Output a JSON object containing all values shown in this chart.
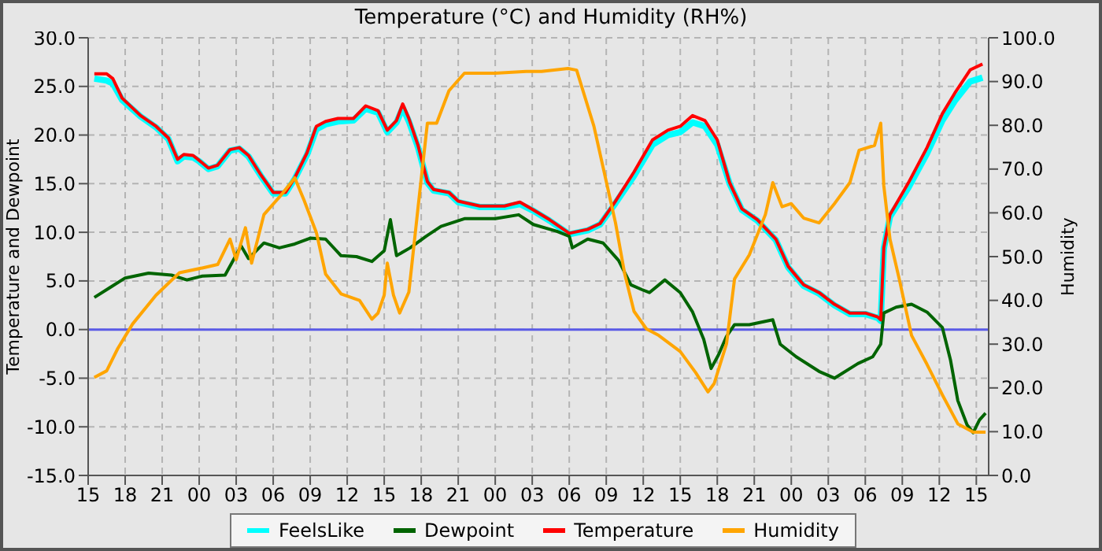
{
  "chart_data": {
    "type": "line",
    "title": "Temperature (°C) and Humidity (RH%)",
    "ylabel": "Temperature and Dewpoint",
    "y2label": "Humidity",
    "xlim": [
      "--01-01T15:00",
      "--01-04T16:00"
    ],
    "xticks": [
      {
        "value": "--01-01T15:00",
        "label": "15"
      },
      {
        "value": "--01-01T18:00",
        "label": "18"
      },
      {
        "value": "--01-01T21:00",
        "label": "21"
      },
      {
        "value": "--01-02T00:00",
        "label": "00"
      },
      {
        "value": "--01-02T03:00",
        "label": "03"
      },
      {
        "value": "--01-02T06:00",
        "label": "06"
      },
      {
        "value": "--01-02T09:00",
        "label": "09"
      },
      {
        "value": "--01-02T12:00",
        "label": "12"
      },
      {
        "value": "--01-02T15:00",
        "label": "15"
      },
      {
        "value": "--01-02T18:00",
        "label": "18"
      },
      {
        "value": "--01-02T21:00",
        "label": "21"
      },
      {
        "value": "--01-03T00:00",
        "label": "00"
      },
      {
        "value": "--01-03T03:00",
        "label": "03"
      },
      {
        "value": "--01-03T06:00",
        "label": "06"
      },
      {
        "value": "--01-03T09:00",
        "label": "09"
      },
      {
        "value": "--01-03T12:00",
        "label": "12"
      },
      {
        "value": "--01-03T15:00",
        "label": "15"
      },
      {
        "value": "--01-03T18:00",
        "label": "18"
      },
      {
        "value": "--01-03T21:00",
        "label": "21"
      },
      {
        "value": "--01-04T00:00",
        "label": "00"
      },
      {
        "value": "--01-04T03:00",
        "label": "03"
      },
      {
        "value": "--01-04T06:00",
        "label": "06"
      },
      {
        "value": "--01-04T09:00",
        "label": "09"
      },
      {
        "value": "--01-04T12:00",
        "label": "12"
      },
      {
        "value": "--01-04T15:00",
        "label": "15"
      }
    ],
    "ylim": [
      -15,
      30
    ],
    "yticks": [
      {
        "value": -15,
        "label": "-15.0"
      },
      {
        "value": -10,
        "label": "-10.0"
      },
      {
        "value": -5,
        "label": "-5.0"
      },
      {
        "value": 0,
        "label": "0.0"
      },
      {
        "value": 5,
        "label": "5.0"
      },
      {
        "value": 10,
        "label": "10.0"
      },
      {
        "value": 15,
        "label": "15.0"
      },
      {
        "value": 20,
        "label": "20.0"
      },
      {
        "value": 25,
        "label": "25.0"
      },
      {
        "value": 30,
        "label": "30.0"
      }
    ],
    "y2lim": [
      0,
      100
    ],
    "y2ticks": [
      {
        "value": 0,
        "label": "0.0"
      },
      {
        "value": 10,
        "label": "10.0"
      },
      {
        "value": 20,
        "label": "20.0"
      },
      {
        "value": 30,
        "label": "30.0"
      },
      {
        "value": 40,
        "label": "40.0"
      },
      {
        "value": 50,
        "label": "50.0"
      },
      {
        "value": 60,
        "label": "60.0"
      },
      {
        "value": 70,
        "label": "70.0"
      },
      {
        "value": 80,
        "label": "80.0"
      },
      {
        "value": 90,
        "label": "90.0"
      },
      {
        "value": 100,
        "label": "100.0"
      }
    ],
    "grid": true,
    "legend": "bottom",
    "marker": "none",
    "ref_lines": [
      {
        "axis": "y",
        "value": 0,
        "color": "#5a5ae6"
      }
    ],
    "series": [
      {
        "name": "FeelsLike",
        "color": "#00ffff",
        "x": [
          "--01-01T15:30",
          "--01-01T16:30",
          "--01-01T17:00",
          "--01-01T17:45",
          "--01-01T19:15",
          "--01-01T20:30",
          "--01-01T21:30",
          "--01-01T22:15",
          "--01-01T22:45",
          "--01-01T23:30",
          "--01-02T00:00",
          "--01-02T00:45",
          "--01-02T01:30",
          "--01-02T02:30",
          "--01-02T03:15",
          "--01-02T04:00",
          "--01-02T05:00",
          "--01-02T06:00",
          "--01-02T07:00",
          "--01-02T07:45",
          "--01-02T08:45",
          "--01-02T09:30",
          "--01-02T10:15",
          "--01-02T11:15",
          "--01-02T12:30",
          "--01-02T13:30",
          "--01-02T14:30",
          "--01-02T15:15",
          "--01-02T16:00",
          "--01-02T16:30",
          "--01-02T17:00",
          "--01-02T17:45",
          "--01-02T18:30",
          "--01-02T19:00",
          "--01-02T20:15",
          "--01-02T21:00",
          "--01-02T22:45",
          "--01-03T00:45",
          "--01-03T02:00",
          "--01-03T03:06",
          "--01-03T04:24",
          "--01-03T06:00",
          "--01-03T07:30",
          "--01-03T08:30",
          "--01-03T09:45",
          "--01-03T11:15",
          "--01-03T12:45",
          "--01-03T14:00",
          "--01-03T15:00",
          "--01-03T16:00",
          "--01-03T17:00",
          "--01-03T18:00",
          "--01-03T19:00",
          "--01-03T20:00",
          "--01-03T21:15",
          "--01-03T22:45",
          "--01-03T23:45",
          "--01-04T01:00",
          "--01-04T02:15",
          "--01-04T03:30",
          "--01-04T04:45",
          "--01-04T06:00",
          "--01-04T07:00",
          "--01-04T07:15",
          "--01-04T07:30",
          "--01-04T08:00",
          "--01-04T09:30",
          "--01-04T11:00",
          "--01-04T12:15",
          "--01-04T13:15",
          "--01-04T14:30",
          "--01-04T15:30"
        ],
        "values": [
          25.8,
          25.6,
          25.3,
          23.6,
          21.9,
          20.8,
          19.6,
          17.3,
          17.8,
          17.7,
          17.3,
          16.5,
          16.8,
          18.4,
          18.6,
          17.8,
          15.8,
          14.0,
          14.0,
          15.5,
          18.0,
          20.6,
          21.1,
          21.4,
          21.5,
          22.7,
          22.3,
          20.3,
          21.3,
          22.8,
          21.4,
          18.7,
          15.1,
          14.3,
          14.0,
          13.1,
          12.6,
          12.6,
          12.9,
          12.2,
          11.2,
          9.8,
          10.2,
          10.8,
          13.0,
          15.8,
          19.0,
          20.0,
          20.3,
          21.3,
          20.9,
          19.0,
          15.0,
          12.3,
          11.2,
          9.2,
          6.4,
          4.5,
          3.7,
          2.5,
          1.6,
          1.6,
          1.2,
          0.9,
          8.3,
          11.6,
          14.6,
          18.1,
          21.5,
          23.5,
          25.5,
          25.9
        ]
      },
      {
        "name": "Dewpoint",
        "color": "#006400",
        "x": [
          "--01-01T15:30",
          "--01-01T16:45",
          "--01-01T18:00",
          "--01-01T19:54",
          "--01-01T21:45",
          "--01-01T23:00",
          "--01-02T00:15",
          "--01-02T02:06",
          "--01-02T02:45",
          "--01-02T03:24",
          "--01-02T04:00",
          "--01-02T05:15",
          "--01-02T06:30",
          "--01-02T07:45",
          "--01-02T09:00",
          "--01-02T10:15",
          "--01-02T11:30",
          "--01-02T12:45",
          "--01-02T14:00",
          "--01-02T15:00",
          "--01-02T15:30",
          "--01-02T16:00",
          "--01-02T17:06",
          "--01-02T18:24",
          "--01-02T19:36",
          "--01-02T21:30",
          "--01-03T00:00",
          "--01-03T01:54",
          "--01-03T03:06",
          "--01-03T05:00",
          "--01-03T06:00",
          "--01-03T06:15",
          "--01-03T07:30",
          "--01-03T08:45",
          "--01-03T10:00",
          "--01-03T11:00",
          "--01-03T11:54",
          "--01-03T12:30",
          "--01-03T13:45",
          "--01-03T15:00",
          "--01-03T16:00",
          "--01-03T16:54",
          "--01-03T17:30",
          "--01-03T18:06",
          "--01-03T18:45",
          "--01-03T19:24",
          "--01-03T20:36",
          "--01-03T22:30",
          "--01-03T23:06",
          "--01-04T00:24",
          "--01-04T02:15",
          "--01-04T03:30",
          "--01-04T05:24",
          "--01-04T06:36",
          "--01-04T07:15",
          "--01-04T07:30",
          "--01-04T08:30",
          "--01-04T09:45",
          "--01-04T11:00",
          "--01-04T12:15",
          "--01-04T12:54",
          "--01-04T13:30",
          "--01-04T14:15",
          "--01-04T14:45",
          "--01-04T15:15",
          "--01-04T15:45"
        ],
        "values": [
          3.3,
          4.3,
          5.3,
          5.8,
          5.6,
          5.1,
          5.5,
          5.6,
          7.1,
          8.6,
          7.3,
          8.9,
          8.4,
          8.8,
          9.4,
          9.3,
          7.6,
          7.5,
          7.0,
          8.1,
          11.3,
          7.6,
          8.4,
          9.6,
          10.6,
          11.4,
          11.4,
          11.8,
          10.8,
          10.1,
          9.6,
          8.4,
          9.3,
          8.9,
          7.1,
          4.6,
          4.1,
          3.8,
          5.1,
          3.8,
          1.8,
          -1.0,
          -4.0,
          -2.6,
          -0.7,
          0.5,
          0.5,
          1.0,
          -1.5,
          -2.8,
          -4.3,
          -5.0,
          -3.5,
          -2.8,
          -1.5,
          1.7,
          2.3,
          2.6,
          1.8,
          0.2,
          -3.1,
          -7.3,
          -9.8,
          -10.6,
          -9.3,
          -8.6
        ]
      },
      {
        "name": "Temperature",
        "color": "#ff0000",
        "x": [
          "--01-01T15:30",
          "--01-01T16:30",
          "--01-01T17:00",
          "--01-01T17:45",
          "--01-01T19:15",
          "--01-01T20:30",
          "--01-01T21:30",
          "--01-01T22:15",
          "--01-01T22:45",
          "--01-01T23:30",
          "--01-02T00:00",
          "--01-02T00:45",
          "--01-02T01:30",
          "--01-02T02:30",
          "--01-02T03:15",
          "--01-02T04:00",
          "--01-02T05:00",
          "--01-02T06:00",
          "--01-02T07:00",
          "--01-02T07:45",
          "--01-02T08:45",
          "--01-02T09:30",
          "--01-02T10:15",
          "--01-02T11:15",
          "--01-02T12:30",
          "--01-02T13:30",
          "--01-02T14:30",
          "--01-02T15:15",
          "--01-02T16:00",
          "--01-02T16:30",
          "--01-02T17:00",
          "--01-02T17:45",
          "--01-02T18:30",
          "--01-02T19:00",
          "--01-02T20:15",
          "--01-02T21:00",
          "--01-02T22:45",
          "--01-03T00:45",
          "--01-03T02:00",
          "--01-03T03:06",
          "--01-03T04:24",
          "--01-03T06:00",
          "--01-03T07:30",
          "--01-03T08:30",
          "--01-03T09:45",
          "--01-03T11:15",
          "--01-03T12:45",
          "--01-03T14:00",
          "--01-03T15:00",
          "--01-03T16:00",
          "--01-03T17:00",
          "--01-03T18:00",
          "--01-03T19:00",
          "--01-03T20:00",
          "--01-03T21:15",
          "--01-03T22:45",
          "--01-03T23:45",
          "--01-04T01:00",
          "--01-04T02:15",
          "--01-04T03:30",
          "--01-04T04:45",
          "--01-04T06:00",
          "--01-04T07:00",
          "--01-04T07:15",
          "--01-04T07:30",
          "--01-04T08:00",
          "--01-04T09:30",
          "--01-04T11:00",
          "--01-04T12:15",
          "--01-04T13:15",
          "--01-04T14:30",
          "--01-04T15:30"
        ],
        "values": [
          26.3,
          26.3,
          25.8,
          23.8,
          22.0,
          20.9,
          19.7,
          17.5,
          18.0,
          17.9,
          17.4,
          16.6,
          16.9,
          18.5,
          18.7,
          17.9,
          15.9,
          14.1,
          14.1,
          15.6,
          18.2,
          20.9,
          21.4,
          21.7,
          21.7,
          23.0,
          22.5,
          20.5,
          21.5,
          23.2,
          21.7,
          18.9,
          15.2,
          14.4,
          14.1,
          13.2,
          12.7,
          12.7,
          13.1,
          12.3,
          11.3,
          9.9,
          10.3,
          10.9,
          13.2,
          16.2,
          19.5,
          20.5,
          20.9,
          22.0,
          21.5,
          19.5,
          15.1,
          12.4,
          11.3,
          9.3,
          6.5,
          4.6,
          3.8,
          2.6,
          1.7,
          1.7,
          1.3,
          1.0,
          8.4,
          11.8,
          15.1,
          18.7,
          22.2,
          24.3,
          26.7,
          27.3
        ]
      },
      {
        "name": "Humidity",
        "color": "#ffa500",
        "axis": "y2",
        "x": [
          "--01-01T15:30",
          "--01-01T16:30",
          "--01-01T17:24",
          "--01-01T18:36",
          "--01-01T20:30",
          "--01-01T22:24",
          "--01-02T00:15",
          "--01-02T01:30",
          "--01-02T02:30",
          "--01-02T03:00",
          "--01-02T03:45",
          "--01-02T04:15",
          "--01-02T05:15",
          "--01-02T06:30",
          "--01-02T07:45",
          "--01-02T08:30",
          "--01-02T09:30",
          "--01-02T10:15",
          "--01-02T11:30",
          "--01-02T13:00",
          "--01-02T14:00",
          "--01-02T14:30",
          "--01-02T15:00",
          "--01-02T15:15",
          "--01-02T15:45",
          "--01-02T16:15",
          "--01-02T17:00",
          "--01-02T17:45",
          "--01-02T18:30",
          "--01-02T19:15",
          "--01-02T20:15",
          "--01-02T21:30",
          "--01-03T00:00",
          "--01-03T02:30",
          "--01-03T03:45",
          "--01-03T05:54",
          "--01-03T06:36",
          "--01-03T08:00",
          "--01-03T09:45",
          "--01-03T10:30",
          "--01-03T11:15",
          "--01-03T12:15",
          "--01-03T13:15",
          "--01-03T15:00",
          "--01-03T16:15",
          "--01-03T17:15",
          "--01-03T17:45",
          "--01-03T18:45",
          "--01-03T19:24",
          "--01-03T20:36",
          "--01-03T21:54",
          "--01-03T22:30",
          "--01-03T23:15",
          "--01-04T00:00",
          "--01-04T01:00",
          "--01-04T02:15",
          "--01-04T03:30",
          "--01-04T04:45",
          "--01-04T05:30",
          "--01-04T06:45",
          "--01-04T07:15",
          "--01-04T07:30",
          "--01-04T08:00",
          "--01-04T08:45",
          "--01-04T09:45",
          "--01-04T11:00",
          "--01-04T12:15",
          "--01-04T13:30",
          "--01-04T14:45",
          "--01-04T15:45"
        ],
        "values": [
          22.4,
          23.9,
          29,
          34.6,
          41.2,
          46.3,
          47.4,
          48.2,
          54,
          49.3,
          56.6,
          48.5,
          59.6,
          63.6,
          68,
          62.9,
          55.5,
          46,
          41.5,
          40,
          35.7,
          37.1,
          41.2,
          48.5,
          41.2,
          37.1,
          41.9,
          61.4,
          80.5,
          80.5,
          87.9,
          91.9,
          91.9,
          92.3,
          92.3,
          93,
          92.6,
          79.8,
          57.7,
          46,
          37.5,
          33.5,
          32,
          28.3,
          23.5,
          19.1,
          21,
          30.1,
          44.9,
          50.4,
          59.6,
          66.9,
          61.4,
          62.1,
          58.8,
          57.7,
          62.1,
          66.9,
          74.3,
          75.4,
          80.5,
          66.2,
          54,
          44.9,
          32,
          25.4,
          18.4,
          11.8,
          9.9,
          9.9
        ]
      }
    ]
  }
}
